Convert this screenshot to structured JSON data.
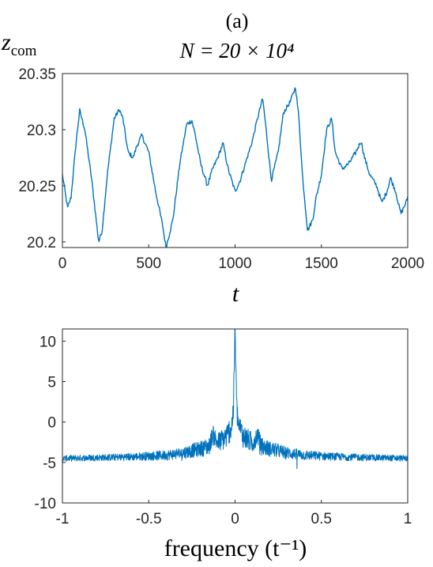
{
  "panel_label": "(a)",
  "title": "N = 20 × 10⁴",
  "ylabel_top": "z",
  "ylabel_top_sub": "com",
  "colors": {
    "line": "#0072BD",
    "axis": "#262626",
    "background": "#ffffff"
  },
  "chart_data": [
    {
      "type": "line",
      "title": "N = 20 × 10⁴",
      "xlabel": "t",
      "ylabel": "z_com",
      "xlim": [
        0,
        2000
      ],
      "ylim": [
        20.195,
        20.35
      ],
      "xticks": [
        0,
        500,
        1000,
        1500,
        2000
      ],
      "xtick_labels": [
        "0",
        "500",
        "1000",
        "1500",
        "2000"
      ],
      "yticks": [
        20.2,
        20.25,
        20.3,
        20.35
      ],
      "ytick_labels": [
        "20.2",
        "20.25",
        "20.3",
        "20.35"
      ],
      "grid": false,
      "series": [
        {
          "x": [
            0,
            30,
            50,
            80,
            100,
            130,
            170,
            210,
            230,
            260,
            300,
            330,
            350,
            380,
            410,
            430,
            460,
            500,
            540,
            580,
            600,
            640,
            680,
            720,
            750,
            770,
            800,
            840,
            870,
            900,
            930,
            960,
            1000,
            1030,
            1060,
            1100,
            1130,
            1160,
            1180,
            1210,
            1250,
            1280,
            1320,
            1350,
            1370,
            1390,
            1420,
            1450,
            1470,
            1500,
            1530,
            1560,
            1580,
            1620,
            1660,
            1700,
            1730,
            1750,
            1780,
            1820,
            1850,
            1880,
            1900,
            1930,
            1960,
            1990,
            2000
          ],
          "y": [
            20.26,
            20.23,
            20.24,
            20.29,
            20.317,
            20.3,
            20.255,
            20.2,
            20.21,
            20.26,
            20.31,
            20.318,
            20.31,
            20.28,
            20.275,
            20.285,
            20.295,
            20.28,
            20.245,
            20.215,
            20.195,
            20.22,
            20.27,
            20.305,
            20.308,
            20.295,
            20.27,
            20.25,
            20.265,
            20.275,
            20.288,
            20.265,
            20.245,
            20.255,
            20.27,
            20.29,
            20.31,
            20.328,
            20.3,
            20.255,
            20.28,
            20.315,
            20.325,
            20.338,
            20.31,
            20.26,
            20.21,
            20.22,
            20.24,
            20.26,
            20.3,
            20.31,
            20.28,
            20.265,
            20.27,
            20.28,
            20.29,
            20.275,
            20.26,
            20.25,
            20.235,
            20.245,
            20.257,
            20.245,
            20.225,
            20.235,
            20.24
          ]
        }
      ]
    },
    {
      "type": "line",
      "title": "",
      "xlabel": "frequency (t⁻¹)",
      "ylabel": "",
      "xlim": [
        -1,
        1
      ],
      "ylim": [
        -10,
        11.5
      ],
      "xticks": [
        -1,
        -0.5,
        0,
        0.5,
        1
      ],
      "xtick_labels": [
        "-1",
        "-0.5",
        "0",
        "0.5",
        "1"
      ],
      "yticks": [
        -10,
        -5,
        0,
        5,
        10
      ],
      "ytick_labels": [
        "-10",
        "-5",
        "0",
        "5",
        "10"
      ],
      "grid": false,
      "series": [
        {
          "x": [
            -1,
            -0.8,
            -0.6,
            -0.4,
            -0.3,
            -0.2,
            -0.15,
            -0.13,
            -0.1,
            -0.05,
            -0.02,
            -0.01,
            0,
            0.01,
            0.02,
            0.05,
            0.1,
            0.13,
            0.15,
            0.2,
            0.3,
            0.4,
            0.6,
            0.8,
            1
          ],
          "y": [
            -4.5,
            -4.4,
            -4.3,
            -4.1,
            -3.8,
            -3.3,
            -3.0,
            -1.5,
            -2.6,
            -1.8,
            -0.5,
            1.5,
            11.3,
            1.5,
            -0.5,
            -1.8,
            -2.6,
            -1.5,
            -3.0,
            -3.3,
            -3.8,
            -4.1,
            -4.3,
            -4.4,
            -4.5
          ]
        }
      ]
    }
  ]
}
